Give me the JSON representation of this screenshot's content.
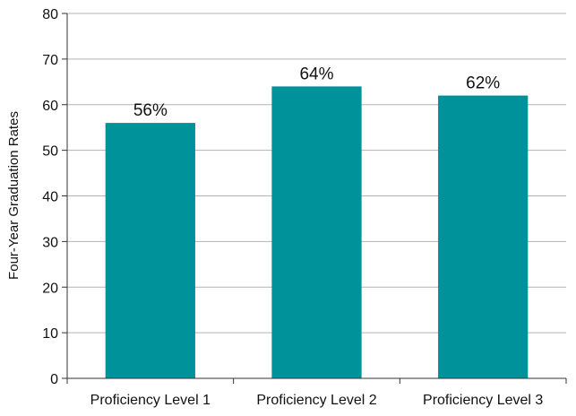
{
  "chart_data": {
    "type": "bar",
    "categories": [
      "Proficiency Level 1",
      "Proficiency Level 2",
      "Proficiency Level 3"
    ],
    "values": [
      56,
      64,
      62
    ],
    "data_labels": [
      "56%",
      "64%",
      "62%"
    ],
    "title": "",
    "xlabel": "",
    "ylabel": "Four-Year Graduation Rates",
    "ylim": [
      0,
      80
    ],
    "yticks": [
      0,
      10,
      20,
      30,
      40,
      50,
      60,
      70,
      80
    ],
    "grid": true,
    "legend": "none",
    "bar_color": "#00929b",
    "grid_color": "#b3b3b3",
    "axis_color": "#333333"
  }
}
